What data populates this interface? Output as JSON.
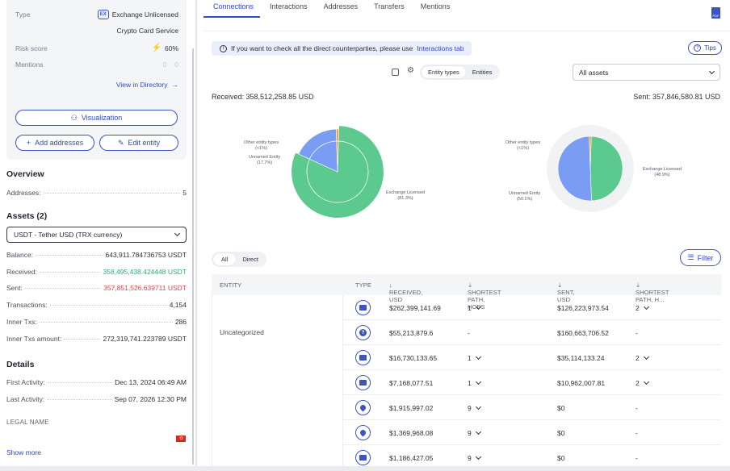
{
  "profile": {
    "type_label": "Type",
    "type_value": "Exchange Unlicensed",
    "type_sub": "Crypto Card Service",
    "type_badge": "EX",
    "risk_label": "Risk score",
    "risk_value": "60%",
    "mentions_label": "Mentions",
    "mentions_a": "0",
    "mentions_b": "0",
    "view_directory": "View in Directory",
    "visualization": "Visualization",
    "add_addresses": "Add addresses",
    "edit_entity": "Edit entity"
  },
  "overview": {
    "title": "Overview",
    "addresses_label": "Addresses:",
    "addresses_value": "5"
  },
  "assets": {
    "title": "Assets (2)",
    "selected": "USDT - Tether USD (TRX currency)",
    "rows": [
      {
        "label": "Balance:",
        "value": "643,911.784736753 USDT"
      },
      {
        "label": "Received:",
        "value": "358,495,438.424448 USDT"
      },
      {
        "label": "Sent:",
        "value": "357,851,526.639711 USDT"
      },
      {
        "label": "Transactions:",
        "value": "4,154"
      },
      {
        "label": "Inner Txs:",
        "value": "286"
      },
      {
        "label": "Inner Txs amount:",
        "value": "272,319,741.223789 USDT"
      }
    ]
  },
  "details": {
    "title": "Details",
    "first_label": "First Activity:",
    "first_value": "Dec 13, 2024 06:49 AM",
    "last_label": "Last Activity:",
    "last_value": "Sep 07, 2026 12:30 PM",
    "legal_name": "LEGAL NAME",
    "show_more": "Show more"
  },
  "tabs": [
    "Connections",
    "Interactions",
    "Addresses",
    "Transfers",
    "Mentions"
  ],
  "info_bar": {
    "text": "If you want to check all the direct counterparties, please use",
    "link": "Interactions tab",
    "tips": "Tips"
  },
  "view_toggle": {
    "a": "Entity types",
    "b": "Entities"
  },
  "assets_filter": "All assets",
  "totals": {
    "received": "Received: 358,512,258.85 USD",
    "sent": "Sent: 357,846,580.81 USD"
  },
  "pie_received": {
    "l1a": "Other entity types",
    "l1b": "(<1%)",
    "l2a": "Unnamed Entity",
    "l2b": "(17.7%)",
    "l3a": "Exchange Licensed",
    "l3b": "(81.3%)"
  },
  "pie_sent": {
    "l1a": "Other entity types",
    "l1b": "(<1%)",
    "l2a": "Unnamed Entity",
    "l2b": "(50.1%)",
    "l3a": "Exchange Licensed",
    "l3b": "(48.9%)"
  },
  "chart_data": [
    {
      "type": "pie",
      "title": "",
      "categories": [
        "Exchange Licensed",
        "Unnamed Entity",
        "Other entity types"
      ],
      "values": [
        81.3,
        17.7,
        1.0
      ],
      "colors": [
        "#5cc98f",
        "#7a9cf2",
        "#f0a33c"
      ]
    },
    {
      "type": "pie",
      "title": "",
      "categories": [
        "Exchange Licensed",
        "Unnamed Entity",
        "Other entity types"
      ],
      "values": [
        48.9,
        50.1,
        1.0
      ],
      "colors": [
        "#5cc98f",
        "#7a9cf2",
        "#f0a33c"
      ]
    }
  ],
  "direction_toggle": {
    "a": "All",
    "b": "Direct"
  },
  "filter_label": "Filter",
  "table": {
    "headers": [
      "ENTITY",
      "TYPE",
      "RECEIVED, USD",
      "SHORTEST PATH, HOPS",
      "SENT, USD",
      "SHORTEST PATH, H..."
    ],
    "entity_label": "Uncategorized",
    "rows": [
      {
        "icon": "card",
        "received": "$262,399,141.69",
        "hops_r": "1",
        "sent": "$126,223,973.54",
        "hops_s": "2"
      },
      {
        "icon": "question",
        "received": "$55,213,879.6",
        "hops_r": "-",
        "sent": "$160,663,706.52",
        "hops_s": "-"
      },
      {
        "icon": "card",
        "received": "$16,730,133.65",
        "hops_r": "1",
        "sent": "$35,114,133.24",
        "hops_s": "2"
      },
      {
        "icon": "card",
        "received": "$7,168,077.51",
        "hops_r": "1",
        "sent": "$10,962,007.81",
        "hops_s": "2"
      },
      {
        "icon": "pin",
        "received": "$1,915,997.02",
        "hops_r": "9",
        "sent": "$0",
        "hops_s": "-"
      },
      {
        "icon": "pin",
        "received": "$1,369,968.08",
        "hops_r": "9",
        "sent": "$0",
        "hops_s": "-"
      },
      {
        "icon": "card",
        "received": "$1,186,427.05",
        "hops_r": "9",
        "sent": "$0",
        "hops_s": "-"
      }
    ]
  }
}
